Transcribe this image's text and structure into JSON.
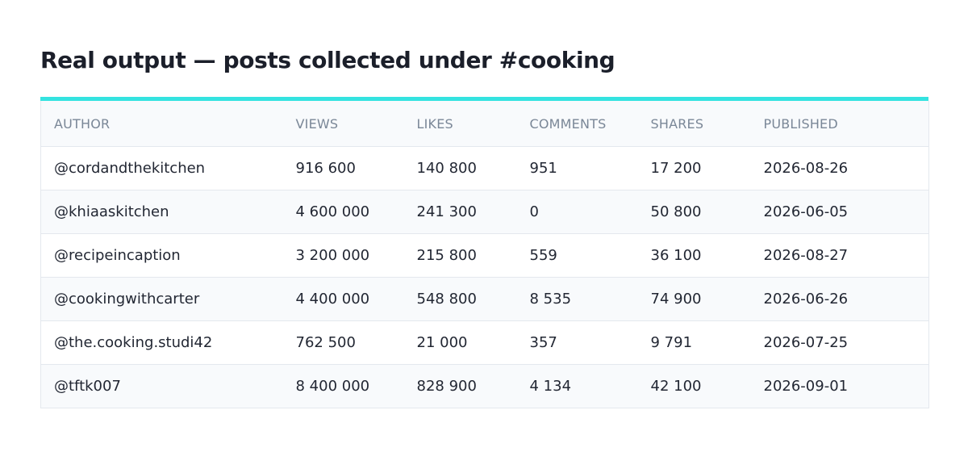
{
  "page": {
    "title": "Real output — posts collected under #cooking"
  },
  "colors": {
    "accent": "#34e3e0",
    "header_bg": "#f8fafc",
    "header_text": "#7a8797",
    "border": "#e4e8ee"
  },
  "table": {
    "headers": [
      "AUTHOR",
      "VIEWS",
      "LIKES",
      "COMMENTS",
      "SHARES",
      "PUBLISHED"
    ],
    "rows": [
      [
        "@cordandthekitchen",
        "916 600",
        "140 800",
        "951",
        "17 200",
        "2026-08-26"
      ],
      [
        "@khiaaskitchen",
        "4 600 000",
        "241 300",
        "0",
        "50 800",
        "2026-06-05"
      ],
      [
        "@recipeincaption",
        "3 200 000",
        "215 800",
        "559",
        "36 100",
        "2026-08-27"
      ],
      [
        "@cookingwithcarter",
        "4 400 000",
        "548 800",
        "8 535",
        "74 900",
        "2026-06-26"
      ],
      [
        "@the.cooking.studi42",
        "762 500",
        "21 000",
        "357",
        "9 791",
        "2026-07-25"
      ],
      [
        "@tftk007",
        "8 400 000",
        "828 900",
        "4 134",
        "42 100",
        "2026-09-01"
      ]
    ]
  }
}
